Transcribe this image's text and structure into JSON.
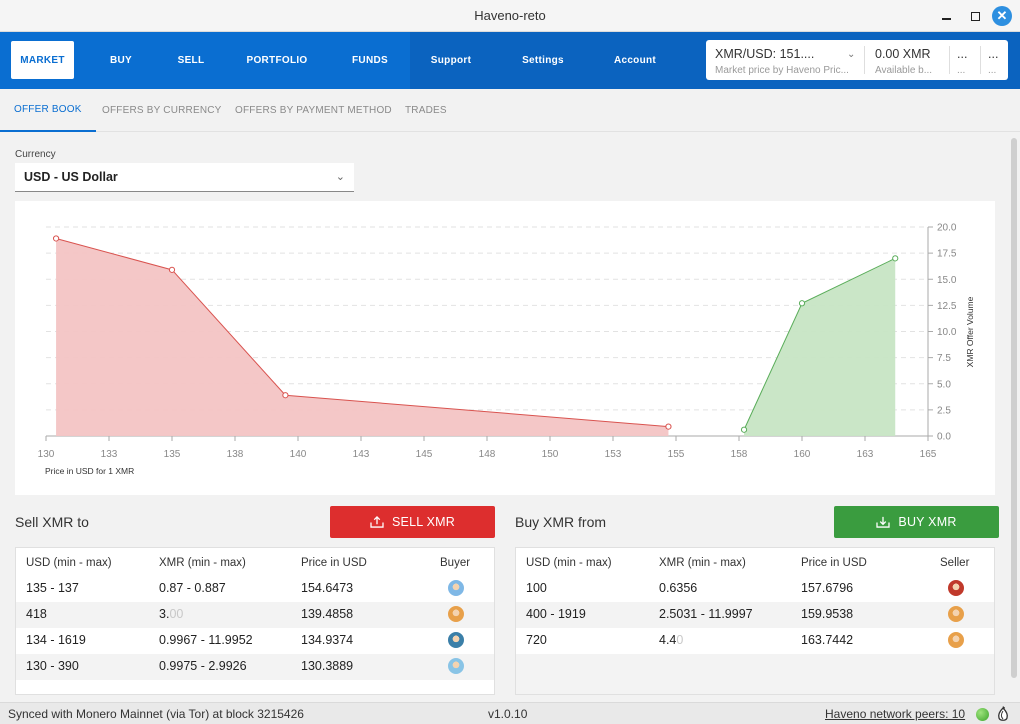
{
  "window": {
    "title": "Haveno-reto"
  },
  "nav": {
    "items": [
      {
        "label": "MARKET",
        "active": true
      },
      {
        "label": "BUY"
      },
      {
        "label": "SELL"
      },
      {
        "label": "PORTFOLIO"
      },
      {
        "label": "FUNDS"
      },
      {
        "label": "Support"
      },
      {
        "label": "Settings"
      },
      {
        "label": "Account"
      }
    ],
    "price": {
      "value": "XMR/USD: 151....",
      "sub": "Market price by Haveno Pric..."
    },
    "available": {
      "value": "0.00 XMR",
      "sub": "Available b..."
    },
    "extra1": {
      "value": "...",
      "sub": "..."
    },
    "extra2": {
      "value": "...",
      "sub": "..."
    }
  },
  "subtabs": [
    {
      "label": "OFFER BOOK",
      "active": true
    },
    {
      "label": "OFFERS BY CURRENCY"
    },
    {
      "label": "OFFERS BY PAYMENT METHOD"
    },
    {
      "label": "TRADES"
    }
  ],
  "currency": {
    "label": "Currency",
    "value": "USD  -  US Dollar"
  },
  "chart_data": {
    "type": "area",
    "xlabel": "Price in USD for 1 XMR",
    "ylabel": "XMR Offer Volume",
    "xlim": [
      130,
      165
    ],
    "ylim": [
      0,
      20
    ],
    "x_ticks": [
      "130",
      "133",
      "135",
      "138",
      "140",
      "143",
      "145",
      "148",
      "150",
      "153",
      "155",
      "158",
      "160",
      "163",
      "165"
    ],
    "y_ticks": [
      "0.0",
      "2.5",
      "5.0",
      "7.5",
      "10.0",
      "12.5",
      "15.0",
      "17.5",
      "20.0"
    ],
    "grid": true,
    "series": [
      {
        "color": "#d9534f",
        "fill": "#f3c4c4",
        "points": [
          [
            130.4,
            18.9
          ],
          [
            135.0,
            15.9
          ],
          [
            139.5,
            3.9
          ],
          [
            154.7,
            0.9
          ]
        ]
      },
      {
        "color": "#5aad5a",
        "fill": "#c7e5c4",
        "points": [
          [
            157.7,
            0.6
          ],
          [
            160.0,
            12.7
          ],
          [
            163.7,
            17.0
          ]
        ]
      }
    ]
  },
  "sell": {
    "title": "Sell XMR to",
    "button": "SELL XMR",
    "columns": [
      "USD (min - max)",
      "XMR (min - max)",
      "Price in USD",
      "Buyer"
    ],
    "rows": [
      {
        "usd": "135 - 137",
        "xmr": "0.87 - 0.887",
        "xmr_faded": "",
        "price": "154.6473",
        "avatar": "#7fb8e6"
      },
      {
        "usd": "418",
        "xmr": "3.",
        "xmr_faded": "00",
        "price": "139.4858",
        "avatar": "#e8a04a"
      },
      {
        "usd": "134 - 1619",
        "xmr": "0.9967 - 11.9952",
        "xmr_faded": "",
        "price": "134.9374",
        "avatar": "#3b7fa8"
      },
      {
        "usd": "130 - 390",
        "xmr": "0.9975 - 2.9926",
        "xmr_faded": "",
        "price": "130.3889",
        "avatar": "#89c4e6"
      }
    ]
  },
  "buy": {
    "title": "Buy XMR from",
    "button": "BUY XMR",
    "columns": [
      "USD (min - max)",
      "XMR (min - max)",
      "Price in USD",
      "Seller"
    ],
    "rows": [
      {
        "usd": "100",
        "xmr": "0.6356",
        "xmr_faded": "",
        "price": "157.6796",
        "avatar": "#c0392b"
      },
      {
        "usd": "400 - 1919",
        "xmr": "2.5031 - 11.9997",
        "xmr_faded": "",
        "price": "159.9538",
        "avatar": "#e8a04a"
      },
      {
        "usd": "720",
        "xmr": "4.4",
        "xmr_faded": "0",
        "price": "163.7442",
        "avatar": "#e8a04a"
      }
    ]
  },
  "status": {
    "sync": "Synced with Monero Mainnet (via Tor) at block 3215426",
    "version": "v1.0.10",
    "peers": "Haveno network peers: 10"
  }
}
